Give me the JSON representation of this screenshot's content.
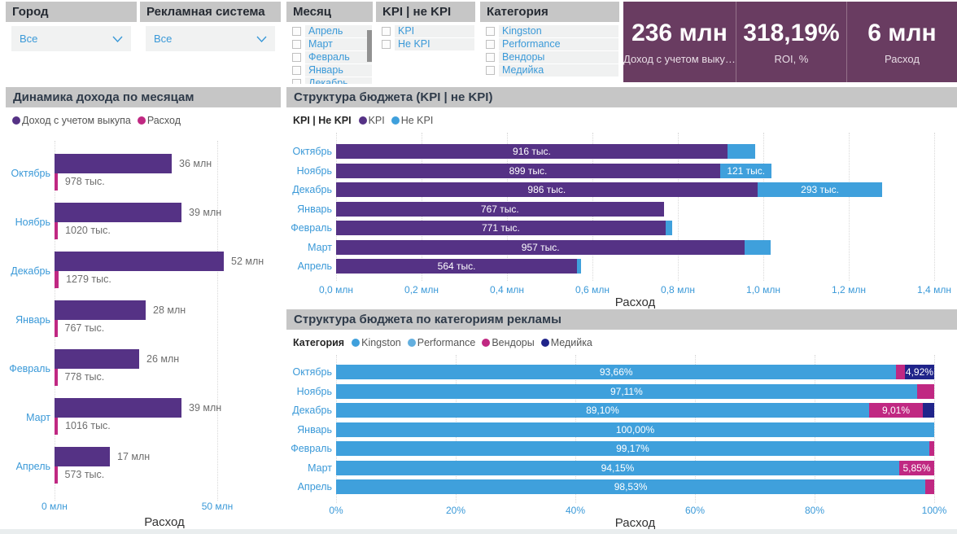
{
  "slicers": {
    "city": {
      "title": "Город",
      "value": "Все"
    },
    "ad_system": {
      "title": "Рекламная система",
      "value": "Все"
    },
    "month": {
      "title": "Месяц",
      "items": [
        "Апрель",
        "Март",
        "Февраль",
        "Январь",
        "Декабрь"
      ]
    },
    "kpi": {
      "title": "KPI | не KPI",
      "items": [
        "KPI",
        "Не KPI"
      ]
    },
    "category": {
      "title": "Категория",
      "items": [
        "Kingston",
        "Performance",
        "Вендоры",
        "Медийка"
      ]
    }
  },
  "cards": [
    {
      "value": "236 млн",
      "label": "Доход с учетом выку…"
    },
    {
      "value": "318,19%",
      "label": "ROI, %"
    },
    {
      "value": "6 млн",
      "label": "Расход"
    }
  ],
  "chart_data": [
    {
      "type": "bar",
      "title": "Динамика дохода по месяцам",
      "orientation": "horizontal",
      "categories": [
        "Октябрь",
        "Ноябрь",
        "Декабрь",
        "Январь",
        "Февраль",
        "Март",
        "Апрель"
      ],
      "series": [
        {
          "name": "Доход с учетом выкупа",
          "color": "#553285",
          "values_mln": [
            36,
            39,
            52,
            28,
            26,
            39,
            17
          ],
          "data_labels": [
            "36 млн",
            "39 млн",
            "52 млн",
            "28 млн",
            "26 млн",
            "39 млн",
            "17 млн"
          ]
        },
        {
          "name": "Расход",
          "color": "#c02882",
          "values_mln": [
            0.978,
            1.02,
            1.279,
            0.767,
            0.778,
            1.016,
            0.573
          ],
          "data_labels": [
            "978 тыс.",
            "1020 тыс.",
            "1279 тыс.",
            "767 тыс.",
            "778 тыс.",
            "1016 тыс.",
            "573 тыс."
          ]
        }
      ],
      "xlabel": "Расход",
      "x_ticks": [
        "0 млн",
        "50 млн"
      ],
      "xlim": [
        0,
        50
      ],
      "grid": true,
      "legend_position": "top"
    },
    {
      "type": "stacked-bar",
      "title": "Структура бюджета (KPI | не KPI)",
      "legend_title": "KPI | Не KPI",
      "categories": [
        "Октябрь",
        "Ноябрь",
        "Декабрь",
        "Январь",
        "Февраль",
        "Март",
        "Апрель"
      ],
      "series": [
        {
          "name": "KPI",
          "color": "#553285",
          "values_tys": [
            916,
            899,
            986,
            767,
            771,
            957,
            564
          ],
          "data_labels": [
            "916 тыс.",
            "899 тыс.",
            "986 тыс.",
            "767 тыс.",
            "771 тыс.",
            "957 тыс.",
            "564 тыс."
          ]
        },
        {
          "name": "Не KPI",
          "color": "#3fa0dc",
          "values_tys": [
            65,
            121,
            293,
            0,
            15,
            60,
            10
          ],
          "data_labels": [
            "",
            "121 тыс.",
            "293 тыс.",
            "",
            "",
            "",
            ""
          ]
        }
      ],
      "xlabel": "Расход",
      "x_ticks": [
        "0,0 млн",
        "0,2 млн",
        "0,4 млн",
        "0,6 млн",
        "0,8 млн",
        "1,0 млн",
        "1,2 млн",
        "1,4 млн"
      ],
      "xlim_mln": [
        0,
        1.4
      ],
      "grid": true,
      "legend_position": "top"
    },
    {
      "type": "stacked-bar-100",
      "title": "Структура бюджета по категориям рекламы",
      "legend_title": "Категория",
      "categories": [
        "Октябрь",
        "Ноябрь",
        "Декабрь",
        "Январь",
        "Февраль",
        "Март",
        "Апрель"
      ],
      "series": [
        {
          "name": "Kingston",
          "color": "#3fa0dc",
          "values_pct": [
            93.66,
            97.11,
            89.1,
            100.0,
            99.17,
            94.15,
            98.53
          ],
          "data_labels": [
            "93,66%",
            "97,11%",
            "89,10%",
            "100,00%",
            "99,17%",
            "94,15%",
            "98,53%"
          ]
        },
        {
          "name": "Performance",
          "color": "#63afdf",
          "values_pct": [
            0,
            0,
            0,
            0,
            0,
            0,
            0
          ],
          "data_labels": [
            "",
            "",
            "",
            "",
            "",
            "",
            ""
          ]
        },
        {
          "name": "Вендоры",
          "color": "#c02882",
          "values_pct": [
            1.42,
            2.89,
            9.01,
            0,
            0.83,
            5.85,
            1.47
          ],
          "data_labels": [
            "",
            "",
            "9,01%",
            "",
            "",
            "5,85%",
            ""
          ]
        },
        {
          "name": "Медийка",
          "color": "#20248a",
          "values_pct": [
            4.92,
            0,
            1.89,
            0,
            0,
            0,
            0
          ],
          "data_labels": [
            "4,92%",
            "",
            "",
            "",
            "",
            "",
            ""
          ]
        }
      ],
      "xlabel": "Расход",
      "x_ticks": [
        "0%",
        "20%",
        "40%",
        "60%",
        "80%",
        "100%"
      ],
      "xlim_pct": [
        0,
        100
      ],
      "grid": true,
      "legend_position": "top"
    }
  ]
}
